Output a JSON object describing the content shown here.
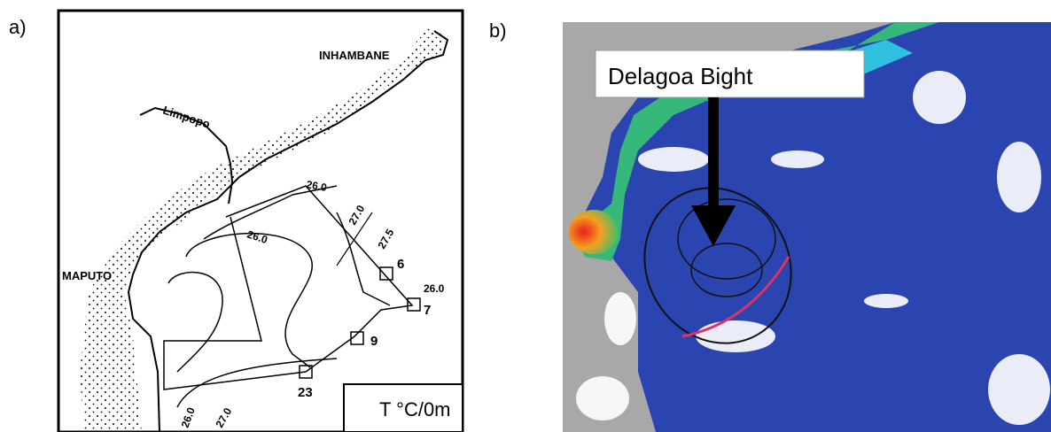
{
  "panels": [
    {
      "label": "a)",
      "place_labels": [
        "INHAMBANE",
        "Limpopo",
        "MAPUTO"
      ],
      "isotherm_labels": [
        "26.0",
        "27.0",
        "27.5",
        "26.0",
        "26.0",
        "26.0",
        "27.0"
      ],
      "station_labels": [
        "6",
        "7",
        "9",
        "23"
      ],
      "legend": "T °C/0m"
    },
    {
      "label": "b)",
      "callout": "Delagoa Bight"
    }
  ]
}
